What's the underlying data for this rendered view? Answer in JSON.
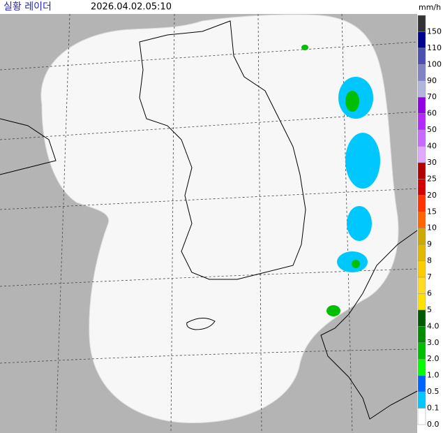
{
  "header": {
    "title": "실황 레이더",
    "time": "2026.04.02.05:10",
    "unit": "mm/h"
  },
  "legend": [
    {
      "label": "150",
      "color": "#333333"
    },
    {
      "label": "110",
      "color": "#000390"
    },
    {
      "label": "100",
      "color": "#4c4eb1"
    },
    {
      "label": "90",
      "color": "#7f82c4"
    },
    {
      "label": "70",
      "color": "#b3b4de"
    },
    {
      "label": "60",
      "color": "#9300e4"
    },
    {
      "label": "50",
      "color": "#b329ff"
    },
    {
      "label": "40",
      "color": "#c969ff"
    },
    {
      "label": "30",
      "color": "#e0a9ff"
    },
    {
      "label": "25",
      "color": "#b40000"
    },
    {
      "label": "20",
      "color": "#d20000"
    },
    {
      "label": "15",
      "color": "#ff3300"
    },
    {
      "label": "10",
      "color": "#ff6600"
    },
    {
      "label": "9",
      "color": "#ccaa00"
    },
    {
      "label": "8",
      "color": "#e0b900"
    },
    {
      "label": "7",
      "color": "#f9cd00"
    },
    {
      "label": "6",
      "color": "#ffdc1f"
    },
    {
      "label": "5",
      "color": "#ffe100"
    },
    {
      "label": "4.0",
      "color": "#005a00"
    },
    {
      "label": "3.0",
      "color": "#008c00"
    },
    {
      "label": "2.0",
      "color": "#00be00"
    },
    {
      "label": "1.0",
      "color": "#00ff00"
    },
    {
      "label": "0.5",
      "color": "#0064ff"
    },
    {
      "label": "0.1",
      "color": "#00c8ff"
    },
    {
      "label": "0.0",
      "color": "#ffffff"
    }
  ]
}
